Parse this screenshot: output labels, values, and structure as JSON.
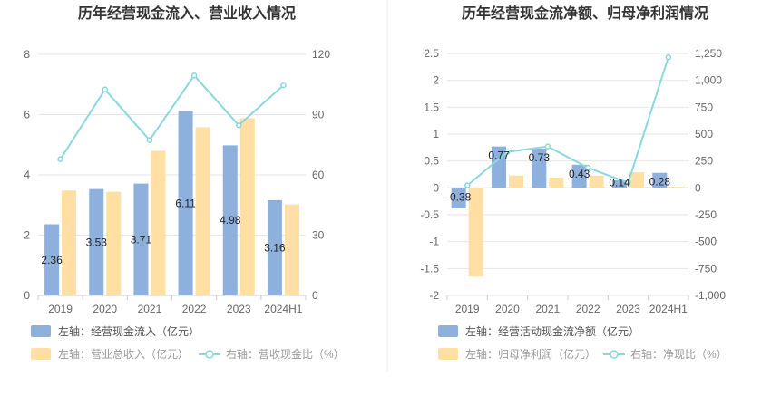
{
  "colors": {
    "bar_primary": "#8eb0dc",
    "bar_secondary": "#ffdfa4",
    "line": "#8ad8dd",
    "grid": "#e6e6e6",
    "axis": "#cccccc",
    "divider": "#eeeeee"
  },
  "chart_data": [
    {
      "type": "bar",
      "title": "历年经营现金流入、营业收入情况",
      "categories": [
        "2019",
        "2020",
        "2021",
        "2022",
        "2023",
        "2024H1"
      ],
      "left_axis": {
        "ylim": [
          0,
          8
        ],
        "ticks": [
          "0",
          "2",
          "4",
          "6",
          "8"
        ],
        "tick_values": [
          0,
          2,
          4,
          6,
          8
        ]
      },
      "right_axis": {
        "ylim": [
          0,
          120
        ],
        "ticks": [
          "0",
          "30",
          "60",
          "90",
          "120"
        ],
        "tick_values": [
          0,
          30,
          60,
          90,
          120
        ]
      },
      "grid": true,
      "legend_position": "bottom",
      "series": [
        {
          "name": "左轴：经营现金流入（亿元）",
          "kind": "bar",
          "axis": "left",
          "values": [
            2.36,
            3.53,
            3.71,
            6.11,
            4.98,
            3.16
          ],
          "data_labels": [
            "2.36",
            "3.53",
            "3.71",
            "6.11",
            "4.98",
            "3.16"
          ]
        },
        {
          "name": "左轴：营业总收入（亿元）",
          "kind": "bar",
          "axis": "left",
          "values": [
            3.48,
            3.44,
            4.8,
            5.58,
            5.88,
            3.02
          ]
        },
        {
          "name": "右轴：营收现金比（%）",
          "kind": "line",
          "axis": "right",
          "values": [
            67.8,
            102.5,
            77.3,
            109.5,
            84.7,
            104.6
          ]
        }
      ]
    },
    {
      "type": "bar",
      "title": "历年经营现金流净额、归母净利润情况",
      "categories": [
        "2019",
        "2020",
        "2021",
        "2022",
        "2023",
        "2024H1"
      ],
      "left_axis": {
        "ylim": [
          -2,
          2.5
        ],
        "ticks": [
          "-2",
          "-1.5",
          "-1",
          "-0.5",
          "0",
          "0.5",
          "1",
          "1.5",
          "2",
          "2.5"
        ],
        "tick_values": [
          -2,
          -1.5,
          -1,
          -0.5,
          0,
          0.5,
          1,
          1.5,
          2,
          2.5
        ]
      },
      "right_axis": {
        "ylim": [
          -1000,
          1250
        ],
        "ticks": [
          "-1,000",
          "-750",
          "-500",
          "-250",
          "0",
          "250",
          "500",
          "750",
          "1,000",
          "1,250"
        ],
        "tick_values": [
          -1000,
          -750,
          -500,
          -250,
          0,
          250,
          500,
          750,
          1000,
          1250
        ]
      },
      "grid": true,
      "legend_position": "bottom",
      "series": [
        {
          "name": "左轴：经营活动现金流净额（亿元）",
          "kind": "bar",
          "axis": "left",
          "values": [
            -0.38,
            0.77,
            0.73,
            0.43,
            0.14,
            0.28
          ],
          "data_labels": [
            "-0.38",
            "0.77",
            "0.73",
            "0.43",
            "0.14",
            "0.28"
          ]
        },
        {
          "name": "左轴：归母净利润（亿元）",
          "kind": "bar",
          "axis": "left",
          "values": [
            -1.65,
            0.23,
            0.19,
            0.23,
            0.29,
            0.02
          ]
        },
        {
          "name": "右轴：净现比（%）",
          "kind": "line",
          "axis": "right",
          "values": [
            23,
            335,
            385,
            187,
            48,
            1215
          ]
        }
      ]
    }
  ]
}
